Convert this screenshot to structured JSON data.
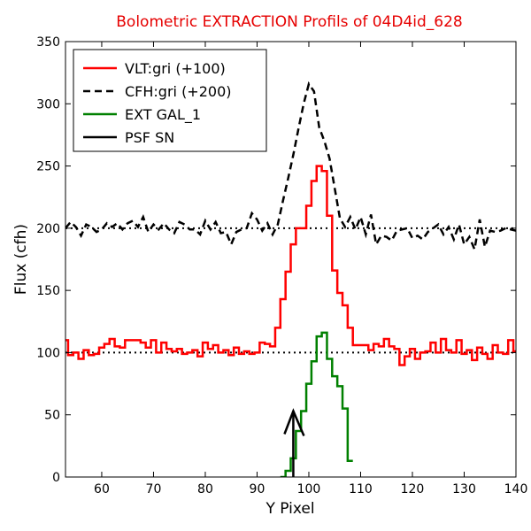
{
  "chart_data": {
    "type": "line",
    "title": "Bolometric EXTRACTION Profils of 04D4id_628",
    "title_color": "#e60000",
    "xlabel": "Y Pixel",
    "ylabel": "Flux (cfh)",
    "xlim": [
      53,
      140
    ],
    "ylim": [
      0,
      350
    ],
    "xticks": [
      60,
      70,
      80,
      90,
      100,
      110,
      120,
      130,
      140
    ],
    "yticks": [
      0,
      50,
      100,
      150,
      200,
      250,
      300,
      350
    ],
    "grid": false,
    "legend": "top-left",
    "reference_lines": [
      {
        "y": 100,
        "style": "dotted",
        "color": "#000000"
      },
      {
        "y": 200,
        "style": "dotted",
        "color": "#000000"
      }
    ],
    "series": [
      {
        "name": "VLT:gri (+100)",
        "color": "#ff0000",
        "style": "steps",
        "x": [
          53,
          54,
          55,
          56,
          57,
          58,
          59,
          60,
          61,
          62,
          63,
          64,
          65,
          66,
          67,
          68,
          69,
          70,
          71,
          72,
          73,
          74,
          75,
          76,
          77,
          78,
          79,
          80,
          81,
          82,
          83,
          84,
          85,
          86,
          87,
          88,
          89,
          90,
          91,
          92,
          93,
          94,
          95,
          96,
          97,
          98,
          99,
          100,
          101,
          102,
          103,
          104,
          105,
          106,
          107,
          108,
          109,
          110,
          111,
          112,
          113,
          114,
          115,
          116,
          117,
          118,
          119,
          120,
          121,
          122,
          123,
          124,
          125,
          126,
          127,
          128,
          129,
          130,
          131,
          132,
          133,
          134,
          135,
          136,
          137,
          138,
          139,
          140
        ],
        "y": [
          110,
          98,
          100,
          95,
          102,
          98,
          99,
          104,
          107,
          111,
          105,
          104,
          110,
          110,
          110,
          108,
          104,
          110,
          100,
          108,
          103,
          101,
          103,
          99,
          100,
          102,
          97,
          108,
          103,
          106,
          100,
          102,
          98,
          104,
          99,
          101,
          99,
          100,
          108,
          107,
          105,
          120,
          143,
          165,
          187,
          200,
          200,
          218,
          238,
          250,
          246,
          210,
          166,
          148,
          138,
          120,
          106,
          106,
          106,
          102,
          107,
          105,
          111,
          105,
          103,
          90,
          97,
          103,
          95,
          100,
          101,
          108,
          100,
          111,
          102,
          100,
          110,
          99,
          102,
          94,
          104,
          99,
          95,
          106,
          100,
          99,
          110,
          101
        ]
      },
      {
        "name": "CFH:gri (+200)",
        "color": "#000000",
        "style": "dashed",
        "x": [
          53,
          54,
          55,
          56,
          57,
          58,
          59,
          60,
          61,
          62,
          63,
          64,
          65,
          66,
          67,
          68,
          69,
          70,
          71,
          72,
          73,
          74,
          75,
          76,
          77,
          78,
          79,
          80,
          81,
          82,
          83,
          84,
          85,
          86,
          87,
          88,
          89,
          90,
          91,
          92,
          93,
          94,
          95,
          96,
          97,
          98,
          99,
          100,
          101,
          102,
          103,
          104,
          105,
          106,
          107,
          108,
          109,
          110,
          111,
          112,
          113,
          114,
          115,
          116,
          117,
          118,
          119,
          120,
          121,
          122,
          123,
          124,
          125,
          126,
          127,
          128,
          129,
          130,
          131,
          132,
          133,
          134,
          135,
          136,
          137,
          138,
          139,
          140
        ],
        "y": [
          200,
          205,
          201,
          194,
          203,
          201,
          197,
          199,
          204,
          201,
          204,
          199,
          204,
          206,
          201,
          209,
          197,
          203,
          199,
          204,
          199,
          196,
          205,
          203,
          199,
          199,
          195,
          206,
          199,
          205,
          196,
          197,
          187,
          197,
          199,
          200,
          212,
          207,
          198,
          204,
          195,
          203,
          222,
          240,
          259,
          280,
          300,
          316,
          310,
          281,
          270,
          256,
          232,
          208,
          201,
          209,
          199,
          209,
          195,
          211,
          187,
          194,
          193,
          190,
          198,
          199,
          200,
          192,
          194,
          191,
          197,
          200,
          203,
          195,
          201,
          191,
          203,
          187,
          193,
          183,
          207,
          185,
          198,
          197,
          198,
          200,
          199,
          198
        ]
      },
      {
        "name": "EXT GAL_1",
        "color": "#008000",
        "style": "steps",
        "x": [
          95,
          96,
          97,
          98,
          99,
          100,
          101,
          102,
          103,
          104,
          105,
          106,
          107,
          108
        ],
        "y": [
          0,
          5,
          15,
          37,
          53,
          75,
          93,
          113,
          116,
          95,
          81,
          73,
          55,
          13
        ]
      },
      {
        "name": "PSF SN",
        "color": "#000000",
        "style": "arrow",
        "x": [
          97,
          97
        ],
        "y": [
          0,
          53
        ]
      }
    ]
  }
}
